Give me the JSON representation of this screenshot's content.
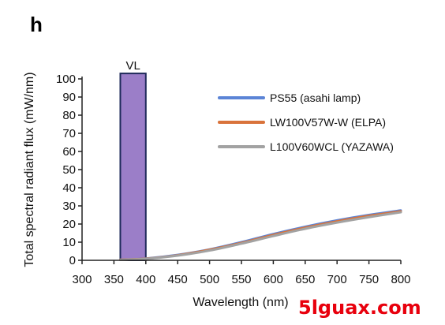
{
  "panel_label": "h",
  "watermark": "5lguax.com",
  "chart_data": {
    "type": "line",
    "title": "",
    "xlabel": "Wavelength (nm)",
    "ylabel": "Total spectral radiant flux (mW/nm)",
    "xlim": [
      300,
      800
    ],
    "ylim": [
      0,
      100
    ],
    "xticks": [
      300,
      350,
      400,
      450,
      500,
      550,
      600,
      650,
      700,
      750,
      800
    ],
    "yticks": [
      0,
      10,
      20,
      30,
      40,
      50,
      60,
      70,
      80,
      90,
      100
    ],
    "grid": false,
    "legend_position": "top-right",
    "highlight_band": {
      "label": "VL",
      "x_range": [
        360,
        400
      ],
      "y_max": 103,
      "color": "#9b7ec8"
    },
    "x": [
      360,
      400,
      450,
      500,
      550,
      600,
      650,
      700,
      750,
      800
    ],
    "series": [
      {
        "name": "PS55 (asahi lamp)",
        "color": "#5b84d6",
        "values": [
          0.3,
          1.0,
          3.0,
          6.0,
          10.0,
          14.5,
          18.5,
          22.0,
          25.0,
          27.5
        ]
      },
      {
        "name": "LW100V57W-W (ELPA)",
        "color": "#d9733b",
        "values": [
          0.3,
          0.9,
          2.8,
          5.8,
          9.6,
          14.0,
          18.0,
          21.5,
          24.5,
          27.0
        ]
      },
      {
        "name": "L100V60WCL (YAZAWA)",
        "color": "#a2a2a2",
        "values": [
          0.2,
          0.8,
          2.6,
          5.4,
          9.2,
          13.4,
          17.4,
          20.8,
          23.8,
          26.5
        ]
      }
    ]
  }
}
